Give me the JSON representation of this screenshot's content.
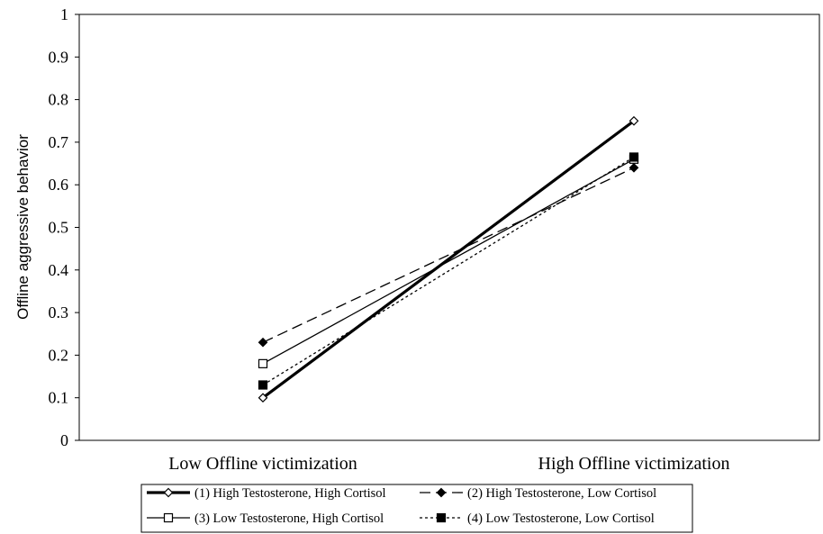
{
  "chart_data": {
    "type": "line",
    "title": "",
    "xlabel": "",
    "ylabel": "Offline aggressive behavior",
    "categories": [
      "Low Offline victimization",
      "High Offline victimization"
    ],
    "ylim": [
      0,
      1
    ],
    "yticks": [
      "0",
      "0.1",
      "0.2",
      "0.3",
      "0.4",
      "0.5",
      "0.6",
      "0.7",
      "0.8",
      "0.9",
      "1"
    ],
    "grid": false,
    "legend_position": "bottom",
    "series": [
      {
        "name": "(1) High Testosterone, High Cortisol",
        "values": [
          0.1,
          0.75
        ],
        "line": "thick-solid",
        "marker": "open-diamond"
      },
      {
        "name": "(2) High Testosterone, Low Cortisol",
        "values": [
          0.23,
          0.64
        ],
        "line": "long-dash",
        "marker": "filled-diamond"
      },
      {
        "name": "(3) Low Testosterone, High Cortisol",
        "values": [
          0.18,
          0.66
        ],
        "line": "solid",
        "marker": "open-square"
      },
      {
        "name": "(4) Low Testosterone, Low Cortisol",
        "values": [
          0.13,
          0.665
        ],
        "line": "short-dash",
        "marker": "filled-square"
      }
    ]
  }
}
